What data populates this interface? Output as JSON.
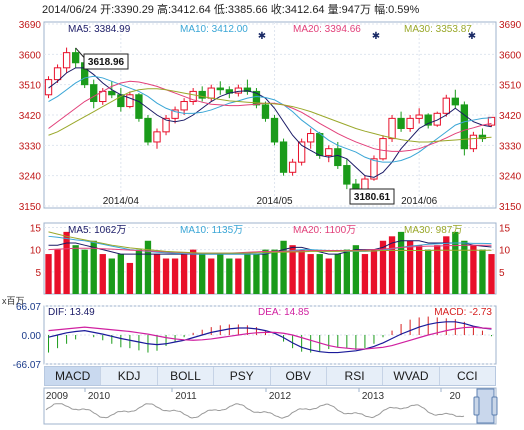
{
  "header": {
    "date": "2014/06/24",
    "open": "开:3390.29",
    "high": "高:3412.64",
    "low": "低:3385.66",
    "close": "收:3412.64",
    "volume": "量:947万",
    "amplitude": "幅:0.59%"
  },
  "price_panel": {
    "legend": [
      {
        "label": "MA5: 3384.99",
        "color": "#1a1a66"
      },
      {
        "label": "MA10: 3412.00",
        "color": "#3aa6d6"
      },
      {
        "label": "MA20: 3394.66",
        "color": "#e2407a"
      },
      {
        "label": "MA30: 3353.87",
        "color": "#9aa82a"
      }
    ],
    "y_ticks": [
      "3690",
      "3600",
      "3510",
      "3420",
      "3330",
      "3240",
      "3150"
    ],
    "x_ticks": [
      "2014/04",
      "2014/05",
      "2014/06"
    ],
    "high_callout": "3618.96",
    "low_callout": "3180.61",
    "colors": {
      "up": "#e8102a",
      "down": "#1a9b1a",
      "axis_text": "#c01818"
    }
  },
  "volume_panel": {
    "legend": [
      {
        "label": "MA5: 1062万",
        "color": "#1a1a66"
      },
      {
        "label": "MA10: 1135万",
        "color": "#3aa6d6"
      },
      {
        "label": "MA20: 1100万",
        "color": "#e2407a"
      },
      {
        "label": "MA30: 987万",
        "color": "#9aa82a"
      }
    ],
    "y_ticks": [
      "15",
      "10",
      "5"
    ],
    "unit": "x百万"
  },
  "macd_panel": {
    "dif": "DIF: 13.49",
    "dea": "DEA: 14.85",
    "macd": "MACD: -2.73",
    "y_ticks": [
      "66.07",
      "0.00",
      "-66.07"
    ]
  },
  "tabs": [
    "MACD",
    "KDJ",
    "BOLL",
    "PSY",
    "OBV",
    "RSI",
    "WVAD",
    "CCI"
  ],
  "active_tab": "MACD",
  "overview": {
    "years": [
      "2009",
      "2010",
      "2011",
      "2012",
      "2013",
      "20"
    ]
  },
  "chart_data": {
    "type": "candlestick",
    "y_range": [
      3150,
      3690
    ],
    "x_ticks": [
      "2014/04",
      "2014/05",
      "2014/06"
    ],
    "candles": [
      [
        3480,
        3535,
        3470,
        3525
      ],
      [
        3525,
        3570,
        3515,
        3560
      ],
      [
        3560,
        3620,
        3545,
        3605
      ],
      [
        3605,
        3619,
        3560,
        3575
      ],
      [
        3575,
        3590,
        3500,
        3510
      ],
      [
        3510,
        3525,
        3440,
        3460
      ],
      [
        3460,
        3500,
        3450,
        3490
      ],
      [
        3490,
        3520,
        3470,
        3480
      ],
      [
        3480,
        3500,
        3430,
        3445
      ],
      [
        3445,
        3490,
        3440,
        3480
      ],
      [
        3480,
        3485,
        3400,
        3410
      ],
      [
        3410,
        3420,
        3330,
        3340
      ],
      [
        3340,
        3380,
        3320,
        3370
      ],
      [
        3370,
        3420,
        3360,
        3410
      ],
      [
        3410,
        3445,
        3395,
        3435
      ],
      [
        3435,
        3470,
        3420,
        3460
      ],
      [
        3460,
        3500,
        3450,
        3490
      ],
      [
        3490,
        3505,
        3460,
        3470
      ],
      [
        3470,
        3510,
        3460,
        3500
      ],
      [
        3500,
        3520,
        3480,
        3495
      ],
      [
        3495,
        3505,
        3470,
        3485
      ],
      [
        3485,
        3510,
        3475,
        3500
      ],
      [
        3500,
        3525,
        3480,
        3490
      ],
      [
        3490,
        3500,
        3440,
        3450
      ],
      [
        3450,
        3460,
        3400,
        3410
      ],
      [
        3410,
        3420,
        3330,
        3340
      ],
      [
        3340,
        3350,
        3240,
        3250
      ],
      [
        3250,
        3290,
        3240,
        3280
      ],
      [
        3280,
        3350,
        3270,
        3340
      ],
      [
        3340,
        3380,
        3320,
        3365
      ],
      [
        3365,
        3370,
        3290,
        3300
      ],
      [
        3300,
        3330,
        3280,
        3320
      ],
      [
        3320,
        3340,
        3260,
        3270
      ],
      [
        3270,
        3290,
        3200,
        3215
      ],
      [
        3215,
        3230,
        3185,
        3200
      ],
      [
        3200,
        3240,
        3181,
        3230
      ],
      [
        3230,
        3300,
        3225,
        3290
      ],
      [
        3290,
        3360,
        3285,
        3350
      ],
      [
        3350,
        3420,
        3340,
        3410
      ],
      [
        3410,
        3430,
        3370,
        3380
      ],
      [
        3380,
        3420,
        3370,
        3410
      ],
      [
        3410,
        3440,
        3395,
        3420
      ],
      [
        3420,
        3425,
        3380,
        3390
      ],
      [
        3390,
        3430,
        3385,
        3425
      ],
      [
        3425,
        3480,
        3415,
        3470
      ],
      [
        3470,
        3495,
        3440,
        3450
      ],
      [
        3450,
        3460,
        3300,
        3320
      ],
      [
        3320,
        3370,
        3310,
        3360
      ],
      [
        3360,
        3380,
        3340,
        3350
      ],
      [
        3390,
        3413,
        3385,
        3413
      ]
    ],
    "ma": {
      "MA5": [
        3500,
        3520,
        3545,
        3560,
        3560,
        3540,
        3515,
        3495,
        3480,
        3470,
        3460,
        3440,
        3420,
        3405,
        3400,
        3405,
        3420,
        3440,
        3460,
        3475,
        3485,
        3490,
        3492,
        3485,
        3470,
        3440,
        3400,
        3360,
        3330,
        3315,
        3300,
        3295,
        3300,
        3290,
        3265,
        3240,
        3235,
        3250,
        3280,
        3320,
        3350,
        3380,
        3395,
        3405,
        3420,
        3440,
        3420,
        3400,
        3390,
        3385
      ],
      "MA10": [
        3460,
        3475,
        3495,
        3515,
        3530,
        3535,
        3530,
        3520,
        3510,
        3500,
        3490,
        3475,
        3455,
        3440,
        3430,
        3425,
        3425,
        3428,
        3435,
        3445,
        3455,
        3462,
        3470,
        3475,
        3472,
        3465,
        3450,
        3430,
        3405,
        3385,
        3365,
        3345,
        3330,
        3320,
        3310,
        3295,
        3285,
        3280,
        3280,
        3285,
        3295,
        3310,
        3330,
        3350,
        3370,
        3390,
        3400,
        3405,
        3410,
        3412
      ],
      "MA20": [
        3380,
        3400,
        3420,
        3440,
        3460,
        3475,
        3490,
        3505,
        3515,
        3520,
        3518,
        3512,
        3505,
        3495,
        3485,
        3475,
        3465,
        3458,
        3452,
        3450,
        3448,
        3448,
        3450,
        3452,
        3455,
        3455,
        3450,
        3440,
        3428,
        3412,
        3395,
        3380,
        3365,
        3352,
        3340,
        3330,
        3320,
        3315,
        3312,
        3312,
        3315,
        3320,
        3330,
        3340,
        3352,
        3365,
        3375,
        3382,
        3390,
        3395
      ],
      "MA30": [
        3360,
        3370,
        3385,
        3400,
        3415,
        3430,
        3445,
        3460,
        3475,
        3488,
        3495,
        3498,
        3498,
        3495,
        3490,
        3485,
        3480,
        3475,
        3470,
        3466,
        3462,
        3460,
        3458,
        3456,
        3455,
        3453,
        3450,
        3445,
        3438,
        3430,
        3420,
        3410,
        3400,
        3390,
        3380,
        3372,
        3365,
        3358,
        3352,
        3347,
        3343,
        3340,
        3340,
        3342,
        3344,
        3346,
        3348,
        3350,
        3352,
        3354
      ]
    },
    "volume_range": [
      0,
      16
    ],
    "volumes": [
      9,
      10,
      14,
      11,
      10,
      12,
      9,
      8,
      9,
      7,
      10,
      12,
      9,
      8,
      8,
      9,
      10,
      9,
      8,
      9,
      8,
      8,
      9,
      9,
      10,
      10,
      12,
      11,
      10,
      9,
      9,
      8,
      9,
      10,
      11,
      9,
      10,
      12,
      13,
      14,
      12,
      11,
      10,
      11,
      13,
      14,
      12,
      11,
      10,
      9
    ],
    "vol_ma": {
      "MA5": [
        11,
        11,
        11.5,
        11.5,
        11,
        10.5,
        10,
        9.5,
        9,
        9,
        9,
        9,
        9,
        9,
        9,
        9,
        9,
        9,
        9,
        9,
        9,
        9,
        9,
        9,
        9,
        9.5,
        10,
        10.5,
        10.5,
        10,
        9.5,
        9,
        9,
        9.5,
        10,
        10,
        10,
        10.5,
        11.5,
        12,
        12,
        12,
        11.5,
        11.5,
        11.5,
        11.5,
        11.5,
        11,
        10.8,
        10.6
      ],
      "MA10": [
        13,
        12.8,
        12.5,
        12.2,
        12,
        11.6,
        11.2,
        10.8,
        10.4,
        10,
        9.8,
        9.6,
        9.4,
        9.3,
        9.2,
        9.1,
        9,
        9,
        9,
        9,
        9,
        9,
        9,
        9,
        9.2,
        9.4,
        9.6,
        9.8,
        10,
        10,
        9.9,
        9.8,
        9.7,
        9.6,
        9.6,
        9.6,
        9.7,
        9.9,
        10.2,
        10.5,
        10.8,
        11,
        11.2,
        11.3,
        11.4,
        11.5,
        11.5,
        11.4,
        11.4,
        11.35
      ],
      "MA20": [
        10,
        10.1,
        10.2,
        10.3,
        10.3,
        10.3,
        10.2,
        10.1,
        10,
        9.9,
        9.8,
        9.7,
        9.6,
        9.5,
        9.4,
        9.3,
        9.2,
        9.2,
        9.2,
        9.2,
        9.2,
        9.3,
        9.4,
        9.5,
        9.6,
        9.6,
        9.6,
        9.7,
        9.7,
        9.8,
        9.8,
        9.8,
        9.8,
        9.8,
        9.8,
        9.9,
        10,
        10.1,
        10.3,
        10.5,
        10.6,
        10.7,
        10.8,
        10.8,
        10.9,
        10.9,
        11,
        11,
        11,
        11
      ],
      "MA30": [
        14,
        13.5,
        13,
        12.6,
        12.2,
        11.8,
        11.4,
        11,
        10.7,
        10.4,
        10.2,
        10,
        9.8,
        9.6,
        9.5,
        9.4,
        9.3,
        9.2,
        9.2,
        9.2,
        9.2,
        9.2,
        9.2,
        9.3,
        9.3,
        9.4,
        9.4,
        9.5,
        9.5,
        9.6,
        9.6,
        9.6,
        9.6,
        9.7,
        9.7,
        9.7,
        9.7,
        9.8,
        9.8,
        9.8,
        9.8,
        9.8,
        9.8,
        9.85,
        9.85,
        9.85,
        9.87,
        9.87,
        9.87,
        9.87
      ]
    },
    "macd_range": [
      -66.07,
      66.07
    ],
    "macd_hist": [
      -40,
      -30,
      -20,
      -10,
      0,
      -5,
      -12,
      -20,
      -28,
      -30,
      -35,
      -40,
      -36,
      -25,
      -15,
      -5,
      5,
      12,
      18,
      22,
      24,
      24,
      22,
      18,
      10,
      0,
      -15,
      -30,
      -38,
      -40,
      -38,
      -32,
      -28,
      -30,
      -34,
      -30,
      -20,
      -5,
      10,
      25,
      35,
      40,
      42,
      40,
      38,
      36,
      30,
      20,
      10,
      -2.73
    ],
    "dif": [
      -5,
      0,
      5,
      8,
      10,
      6,
      2,
      -3,
      -8,
      -12,
      -16,
      -20,
      -22,
      -20,
      -16,
      -12,
      -6,
      0,
      6,
      10,
      14,
      16,
      16,
      14,
      10,
      4,
      -6,
      -18,
      -28,
      -34,
      -38,
      -40,
      -40,
      -38,
      -36,
      -32,
      -26,
      -18,
      -8,
      2,
      10,
      18,
      24,
      28,
      30,
      30,
      26,
      20,
      16,
      13.49
    ],
    "dea": [
      10,
      12,
      14,
      16,
      18,
      16,
      14,
      12,
      10,
      8,
      5,
      2,
      -2,
      -6,
      -9,
      -11,
      -12,
      -11,
      -9,
      -6,
      -3,
      0,
      3,
      5,
      6,
      6,
      4,
      0,
      -6,
      -12,
      -18,
      -24,
      -28,
      -30,
      -32,
      -32,
      -30,
      -28,
      -24,
      -18,
      -12,
      -6,
      0,
      5,
      10,
      14,
      17,
      18,
      16,
      14.85
    ]
  }
}
